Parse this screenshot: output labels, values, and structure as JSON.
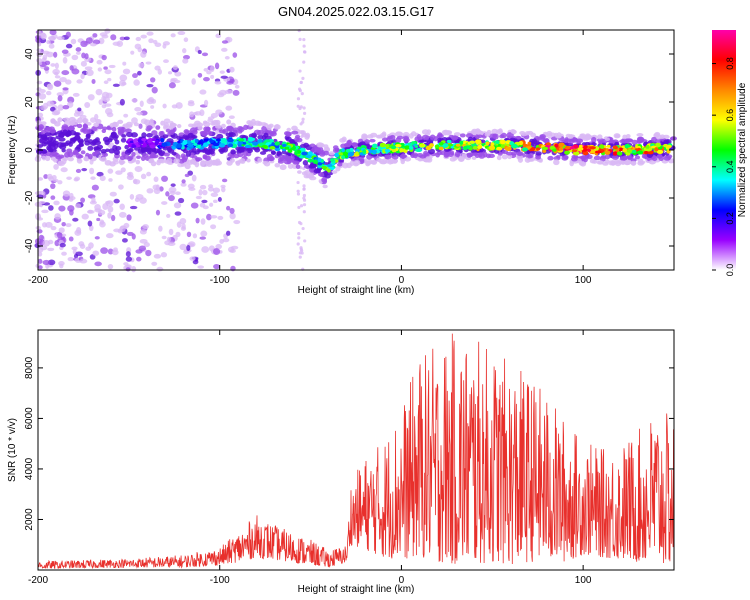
{
  "title": "GN04.2025.022.03.15.G17",
  "colors": {
    "axes": "#000000",
    "snr_line": "#e8302c",
    "cloud_light": "#d9b8f5",
    "cloud_mid": "#9b4fe8",
    "cloud_dark": "#5a0fd6"
  },
  "colorbar": {
    "label": "Normalized spectral amplitude",
    "ticks": [
      "0.0",
      "0.2",
      "0.4",
      "0.6",
      "0.8"
    ],
    "tick_values": [
      0.0,
      0.2,
      0.4,
      0.6,
      0.8
    ],
    "range": [
      0,
      0.93
    ],
    "stops": [
      "#ffffff",
      "#9900ff",
      "#0000ff",
      "#00ffff",
      "#00ff00",
      "#ffff00",
      "#ff8800",
      "#ff0000",
      "#ff00aa"
    ]
  },
  "chart_data": [
    {
      "type": "heatmap",
      "xlabel": "Height of straight line (km)",
      "ylabel": "Frequency (Hz)",
      "xlim": [
        -200,
        150
      ],
      "ylim": [
        -50,
        50
      ],
      "x_ticks": [
        -200,
        -100,
        0,
        100
      ],
      "y_ticks": [
        -40,
        -20,
        0,
        20,
        40
      ],
      "grid": false,
      "ridge": {
        "x": [
          -200,
          -180,
          -160,
          -140,
          -120,
          -100,
          -80,
          -60,
          -50,
          -40,
          -35,
          -20,
          0,
          20,
          40,
          60,
          80,
          100,
          120,
          150
        ],
        "frequency": [
          3,
          4,
          3,
          3,
          2,
          3,
          3,
          1,
          -3,
          -8,
          -2,
          0,
          1,
          2,
          2,
          2,
          1,
          0,
          0,
          1
        ],
        "amplitude": [
          0.15,
          0.25,
          0.2,
          0.15,
          0.35,
          0.35,
          0.45,
          0.5,
          0.45,
          0.5,
          0.55,
          0.55,
          0.55,
          0.6,
          0.6,
          0.65,
          0.85,
          0.9,
          0.75,
          0.7
        ]
      }
    },
    {
      "type": "line",
      "xlabel": "Height of straight line (km)",
      "ylabel": "SNR (10 * v/v)",
      "xlim": [
        -200,
        150
      ],
      "ylim": [
        0,
        9500
      ],
      "x_ticks": [
        -200,
        -100,
        0,
        100
      ],
      "y_ticks": [
        2000,
        4000,
        6000,
        8000
      ],
      "grid": false,
      "envelope": {
        "x": [
          -200,
          -150,
          -120,
          -100,
          -90,
          -80,
          -70,
          -60,
          -50,
          -40,
          -30,
          -28,
          -20,
          -10,
          0,
          10,
          20,
          30,
          40,
          50,
          60,
          70,
          80,
          90,
          100,
          110,
          120,
          130,
          140,
          150
        ],
        "low": [
          50,
          100,
          100,
          200,
          300,
          500,
          400,
          300,
          200,
          100,
          300,
          1000,
          800,
          500,
          400,
          500,
          300,
          200,
          200,
          300,
          200,
          300,
          400,
          300,
          600,
          500,
          400,
          300,
          200,
          200
        ],
        "high": [
          350,
          450,
          600,
          900,
          1500,
          2200,
          1800,
          1500,
          1200,
          800,
          1000,
          3500,
          4500,
          5200,
          6500,
          8500,
          9000,
          9500,
          9200,
          8800,
          8200,
          7800,
          7000,
          6000,
          5200,
          4800,
          5000,
          5500,
          6500,
          6000
        ]
      }
    }
  ]
}
